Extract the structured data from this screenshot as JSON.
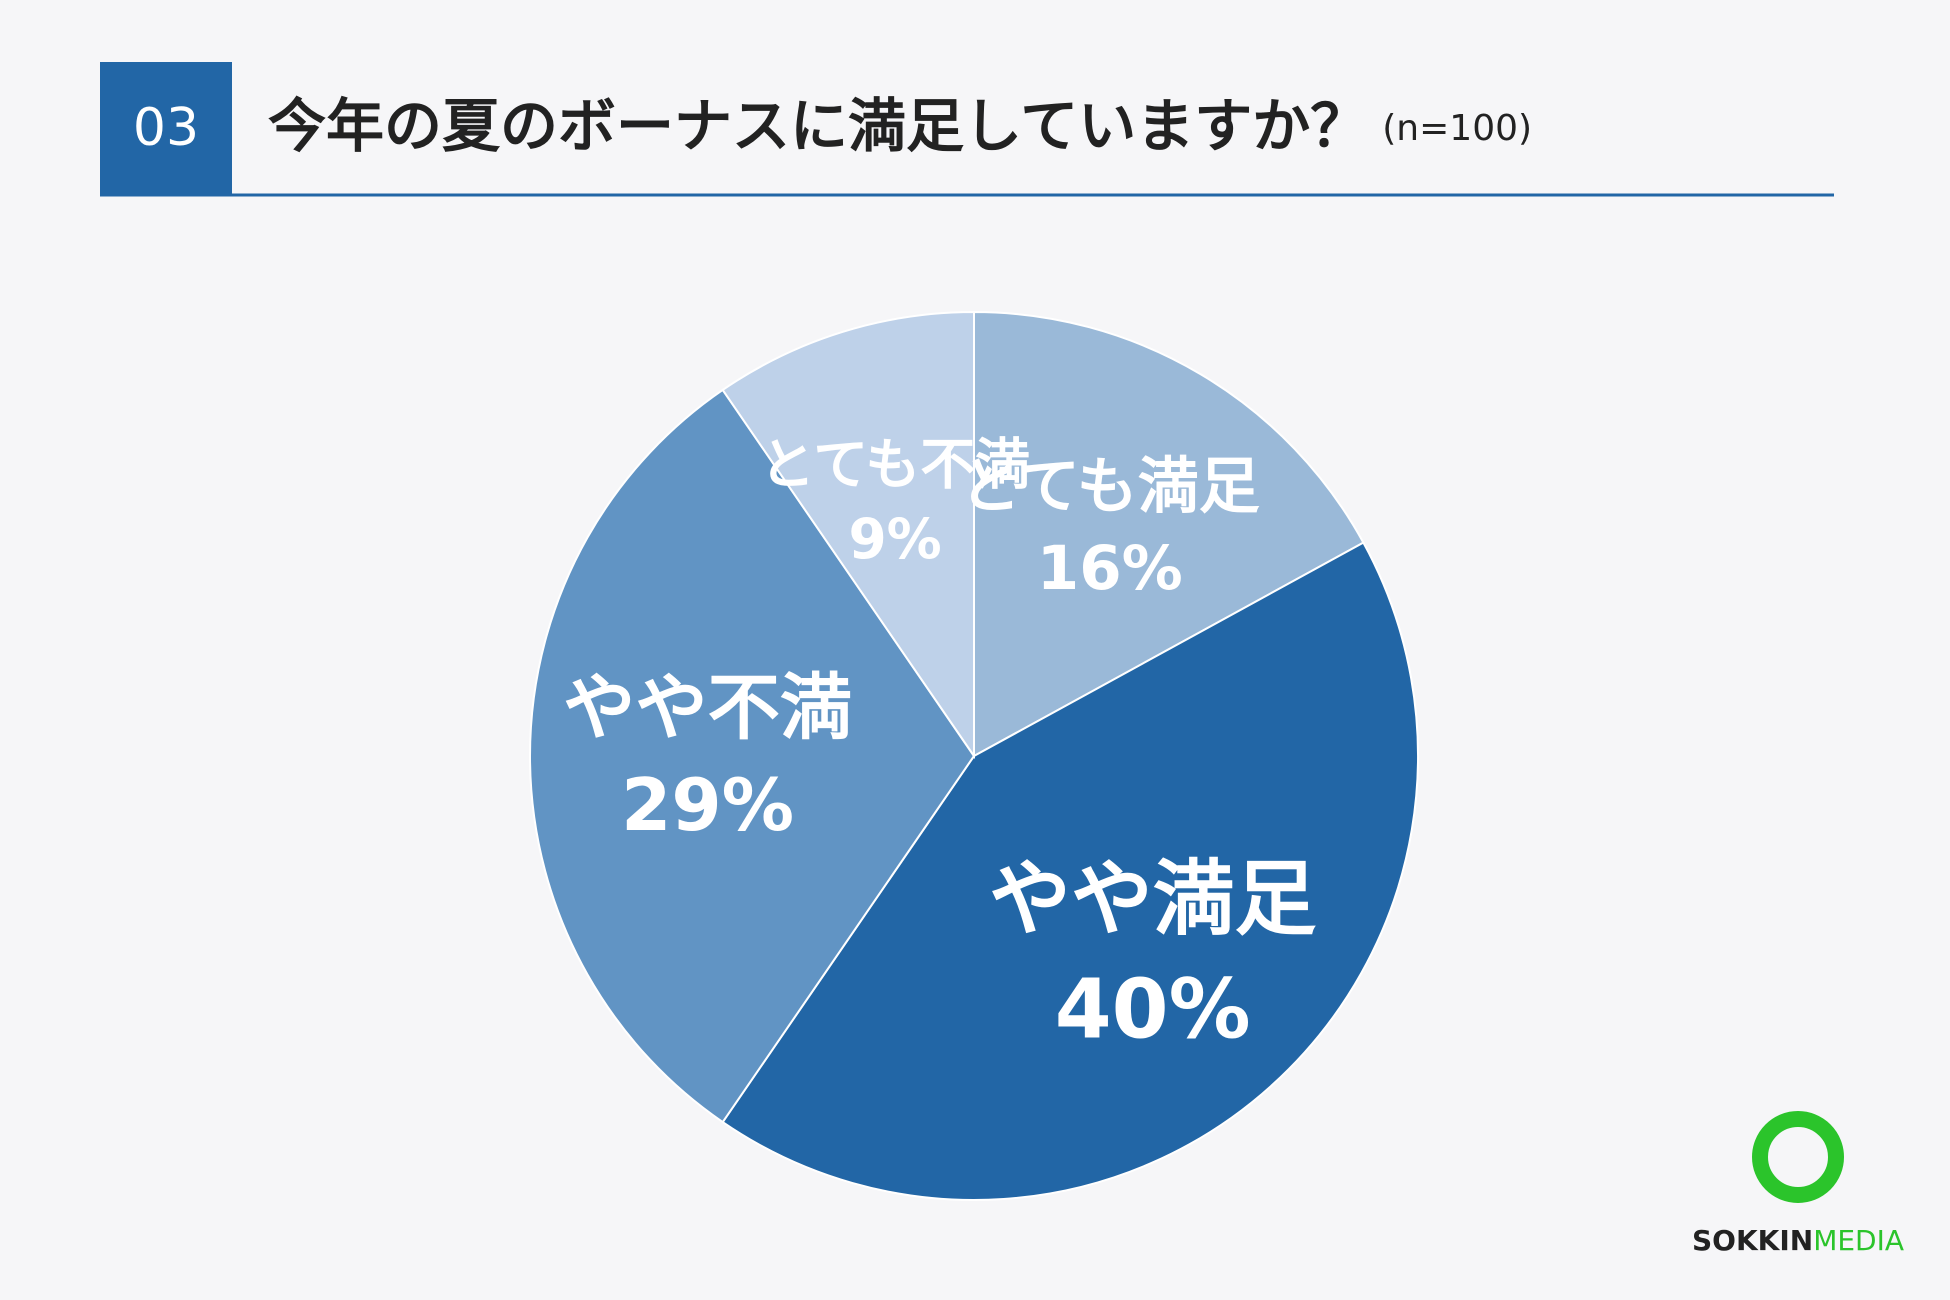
{
  "header": {
    "number": "03",
    "title": "今年の夏のボーナスに満足していますか？",
    "note": "(n=100)"
  },
  "chart_data": {
    "type": "pie",
    "categories": [
      "とても満足",
      "やや満足",
      "やや不満",
      "とても不満"
    ],
    "values": [
      16,
      40,
      29,
      9
    ],
    "value_labels": [
      "16%",
      "40%",
      "29%",
      "9%"
    ],
    "colors": [
      "#9ab9d8",
      "#2266a6",
      "#6194c4",
      "#bed1e9"
    ]
  },
  "logo": {
    "text": "SOKKIN",
    "accent": "MEDIA"
  }
}
